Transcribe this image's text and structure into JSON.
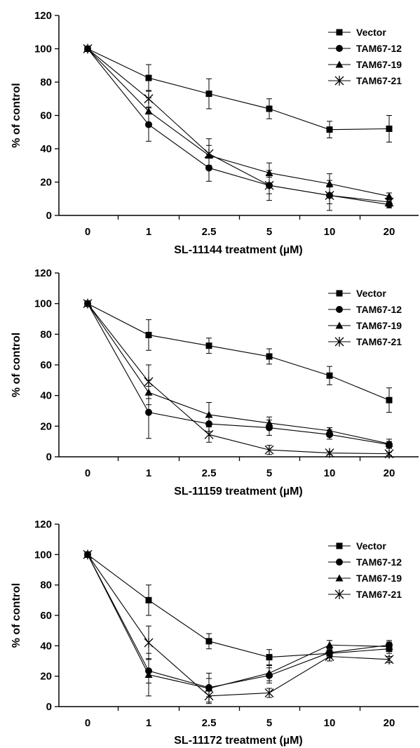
{
  "chart_data": [
    {
      "type": "line",
      "xlabel": "SL-11144 treatment (µM)",
      "ylabel": "% of control",
      "categories": [
        "0",
        "1",
        "2.5",
        "5",
        "10",
        "20"
      ],
      "ylim": [
        0,
        120
      ],
      "yticks": [
        "0",
        "20",
        "40",
        "60",
        "80",
        "100",
        "120"
      ],
      "grid": false,
      "legend_position": "top-right",
      "series": [
        {
          "name": "Vector",
          "marker": "square",
          "values": [
            100,
            82.5,
            73,
            64,
            51.5,
            52
          ],
          "errors": [
            0,
            8,
            9,
            6,
            5,
            8
          ]
        },
        {
          "name": "TAM67-12",
          "marker": "circle",
          "values": [
            100,
            54.5,
            28.5,
            18,
            12,
            6.5
          ],
          "errors": [
            0,
            10,
            8,
            9,
            9,
            2
          ]
        },
        {
          "name": "TAM67-19",
          "marker": "triangle",
          "values": [
            100,
            62.5,
            36,
            25.5,
            19,
            11.5
          ],
          "errors": [
            0,
            8,
            6,
            6,
            6,
            2
          ]
        },
        {
          "name": "TAM67-21",
          "marker": "star",
          "values": [
            100,
            70,
            37,
            18,
            12,
            8
          ],
          "errors": [
            0,
            5,
            9,
            5,
            5,
            2
          ]
        }
      ]
    },
    {
      "type": "line",
      "xlabel": "SL-11159 treatment (µM)",
      "ylabel": "% of control",
      "categories": [
        "0",
        "1",
        "2.5",
        "5",
        "10",
        "20"
      ],
      "ylim": [
        0,
        120
      ],
      "yticks": [
        "0",
        "20",
        "40",
        "60",
        "80",
        "100",
        "120"
      ],
      "grid": false,
      "legend_position": "top-right",
      "series": [
        {
          "name": "Vector",
          "marker": "square",
          "values": [
            100,
            79.5,
            72.5,
            65.5,
            53,
            37
          ],
          "errors": [
            0,
            10,
            5,
            5,
            6,
            8
          ]
        },
        {
          "name": "TAM67-12",
          "marker": "circle",
          "values": [
            100,
            29,
            21.5,
            19,
            14.5,
            8
          ],
          "errors": [
            0,
            17,
            5,
            5,
            3,
            2
          ]
        },
        {
          "name": "TAM67-19",
          "marker": "triangle",
          "values": [
            100,
            42,
            27.5,
            22,
            17,
            8.5
          ],
          "errors": [
            0,
            8,
            8,
            4,
            2,
            3
          ]
        },
        {
          "name": "TAM67-21",
          "marker": "star",
          "values": [
            100,
            49,
            14.5,
            4.5,
            2.5,
            2
          ],
          "errors": [
            0,
            11,
            5,
            3,
            1,
            1
          ]
        }
      ]
    },
    {
      "type": "line",
      "xlabel": "SL-11172 treatment (µM)",
      "ylabel": "% of control",
      "categories": [
        "0",
        "1",
        "2.5",
        "5",
        "10",
        "20"
      ],
      "ylim": [
        0,
        120
      ],
      "yticks": [
        "0",
        "20",
        "40",
        "60",
        "80",
        "100",
        "120"
      ],
      "grid": false,
      "legend_position": "top-right",
      "series": [
        {
          "name": "Vector",
          "marker": "square",
          "values": [
            100,
            70,
            43,
            32.5,
            35,
            38
          ],
          "errors": [
            0,
            10,
            5,
            5,
            3,
            3
          ]
        },
        {
          "name": "TAM67-12",
          "marker": "circle",
          "values": [
            100,
            23.5,
            12.5,
            20.5,
            35.5,
            40.5
          ],
          "errors": [
            0,
            8,
            6,
            5,
            3,
            3
          ]
        },
        {
          "name": "TAM67-19",
          "marker": "triangle",
          "values": [
            100,
            21,
            12,
            22,
            40.5,
            39.5
          ],
          "errors": [
            0,
            14,
            10,
            5,
            3,
            3
          ]
        },
        {
          "name": "TAM67-21",
          "marker": "star",
          "values": [
            100,
            42,
            7,
            9,
            33,
            31
          ],
          "errors": [
            0,
            11,
            4,
            3,
            3,
            2
          ]
        }
      ]
    }
  ]
}
